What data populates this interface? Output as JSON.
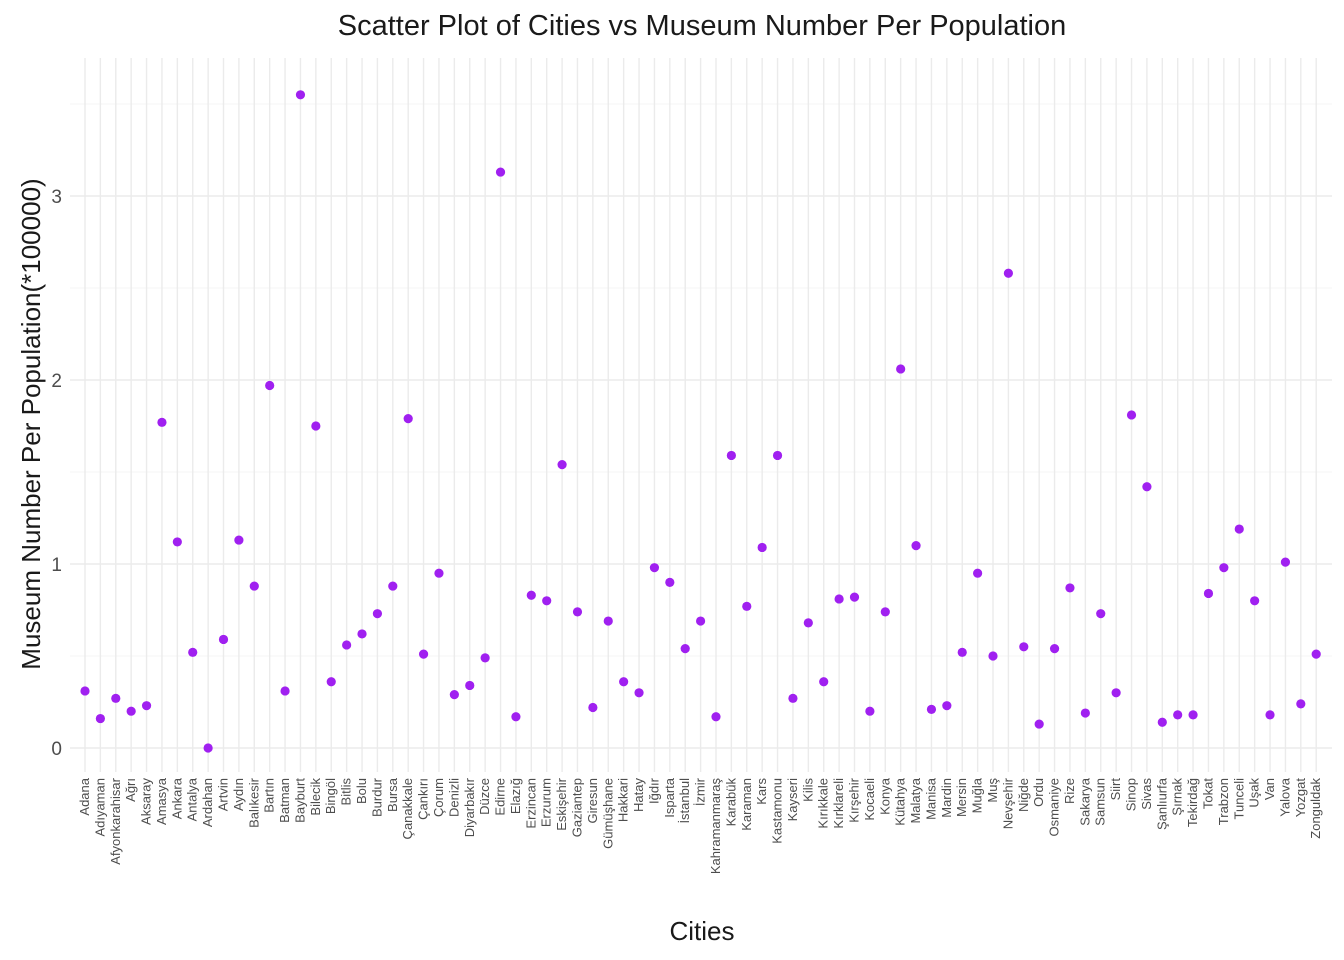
{
  "chart_data": {
    "type": "scatter",
    "title": "Scatter Plot of Cities vs Museum Number Per Population",
    "xlabel": "Cities",
    "ylabel": "Museum Number Per Population(*100000)",
    "ylim": [
      -0.08,
      3.6
    ],
    "yticks": [
      0,
      1,
      2,
      3
    ],
    "grid": true,
    "point_color": "#a020f0",
    "categories": [
      "Adana",
      "Adıyaman",
      "Afyonkarahisar",
      "Ağrı",
      "Aksaray",
      "Amasya",
      "Ankara",
      "Antalya",
      "Ardahan",
      "Artvin",
      "Aydın",
      "Balıkesir",
      "Bartın",
      "Batman",
      "Bayburt",
      "Bilecik",
      "Bingöl",
      "Bitlis",
      "Bolu",
      "Burdur",
      "Bursa",
      "Çanakkale",
      "Çankırı",
      "Çorum",
      "Denizli",
      "Diyarbakır",
      "Düzce",
      "Edirne",
      "Elazığ",
      "Erzincan",
      "Erzurum",
      "Eskişehir",
      "Gaziantep",
      "Giresun",
      "Gümüşhane",
      "Hakkari",
      "Hatay",
      "Iğdır",
      "Isparta",
      "İstanbul",
      "İzmir",
      "Kahramanmaraş",
      "Karabük",
      "Karaman",
      "Kars",
      "Kastamonu",
      "Kayseri",
      "Kilis",
      "Kırıkkale",
      "Kırklareli",
      "Kırşehir",
      "Kocaeli",
      "Konya",
      "Kütahya",
      "Malatya",
      "Manisa",
      "Mardin",
      "Mersin",
      "Muğla",
      "Muş",
      "Nevşehir",
      "Niğde",
      "Ordu",
      "Osmaniye",
      "Rize",
      "Sakarya",
      "Samsun",
      "Siirt",
      "Sinop",
      "Sivas",
      "Şanlıurfa",
      "Şırnak",
      "Tekirdağ",
      "Tokat",
      "Trabzon",
      "Tunceli",
      "Uşak",
      "Van",
      "Yalova",
      "Yozgat",
      "Zonguldak"
    ],
    "values": [
      0.31,
      0.16,
      0.27,
      0.2,
      0.23,
      1.77,
      1.12,
      0.52,
      0.0,
      0.59,
      1.13,
      0.88,
      1.97,
      0.31,
      3.55,
      1.75,
      0.36,
      0.56,
      0.62,
      0.73,
      0.88,
      1.79,
      0.51,
      0.95,
      0.29,
      0.34,
      0.49,
      3.13,
      0.17,
      0.83,
      0.8,
      1.54,
      0.74,
      0.22,
      0.69,
      0.36,
      0.3,
      0.98,
      0.9,
      0.54,
      0.69,
      0.17,
      1.59,
      0.77,
      1.09,
      1.59,
      0.27,
      0.68,
      0.36,
      0.81,
      0.82,
      0.2,
      0.74,
      2.06,
      1.1,
      0.21,
      0.23,
      0.52,
      0.95,
      0.5,
      2.58,
      0.55,
      0.13,
      0.54,
      0.87,
      0.19,
      0.73,
      0.3,
      1.81,
      1.42,
      0.14,
      0.18,
      0.18,
      0.84,
      0.98,
      1.19,
      0.8,
      0.18,
      1.01,
      0.24,
      0.51
    ]
  }
}
